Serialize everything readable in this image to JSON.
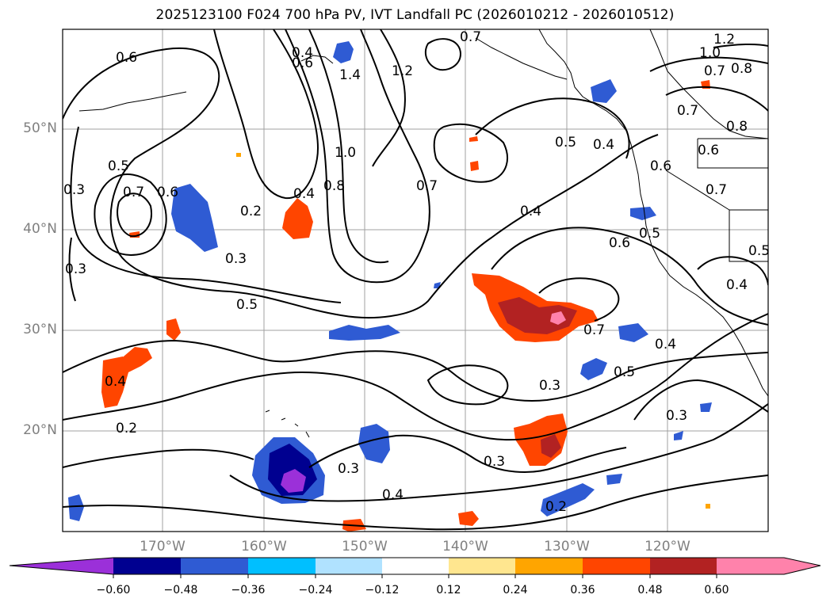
{
  "title": "2025123100 F024 700 hPa PV, IVT Landfall PC (2026010212 - 2026010512)",
  "lat_labels": [
    "50°N",
    "40°N",
    "30°N",
    "20°N"
  ],
  "lon_labels": [
    "170°W",
    "160°W",
    "150°W",
    "140°W",
    "130°W",
    "120°W"
  ],
  "contour_labels": [
    "0.6",
    "0.6",
    "0.4",
    "1.4",
    "1.2",
    "0.7",
    "1.2",
    "1.0",
    "0.8",
    "0.7",
    "0.7",
    "0.8",
    "0.6",
    "0.5",
    "0.4",
    "0.6",
    "0.7",
    "0.3",
    "0.5",
    "0.7",
    "0.6",
    "0.2",
    "0.4",
    "0.8",
    "1.0",
    "0.7",
    "0.4",
    "0.3",
    "0.3",
    "0.5",
    "0.6",
    "0.5",
    "0.5",
    "0.4",
    "0.7",
    "0.4",
    "0.5",
    "0.3",
    "0.3",
    "0.3",
    "0.3",
    "0.4",
    "0.2",
    "0.4",
    "0.2"
  ],
  "colorbar": {
    "tick_labels": [
      "−0.60",
      "−0.48",
      "−0.36",
      "−0.24",
      "−0.12",
      "0.12",
      "0.24",
      "0.36",
      "0.48",
      "0.60"
    ],
    "colors": [
      "#9b30d9",
      "#000090",
      "#2f5bd3",
      "#00bfff",
      "#b0e2ff",
      "#ffffff",
      "#ffe68f",
      "#ffa500",
      "#ff4500",
      "#b22222",
      "#ff82ab",
      "#ff82ab"
    ]
  },
  "map_colors": {
    "positive_light": "#ffe68f",
    "positive_mid": "#ffa500",
    "positive_strong": "#ff4500",
    "positive_max": "#b22222",
    "positive_extreme": "#ff82ab",
    "negative_light": "#b0e2ff",
    "negative_mid": "#00bfff",
    "negative_strong": "#2f5bd3",
    "negative_max": "#000090",
    "negative_extreme": "#9b30d9"
  }
}
